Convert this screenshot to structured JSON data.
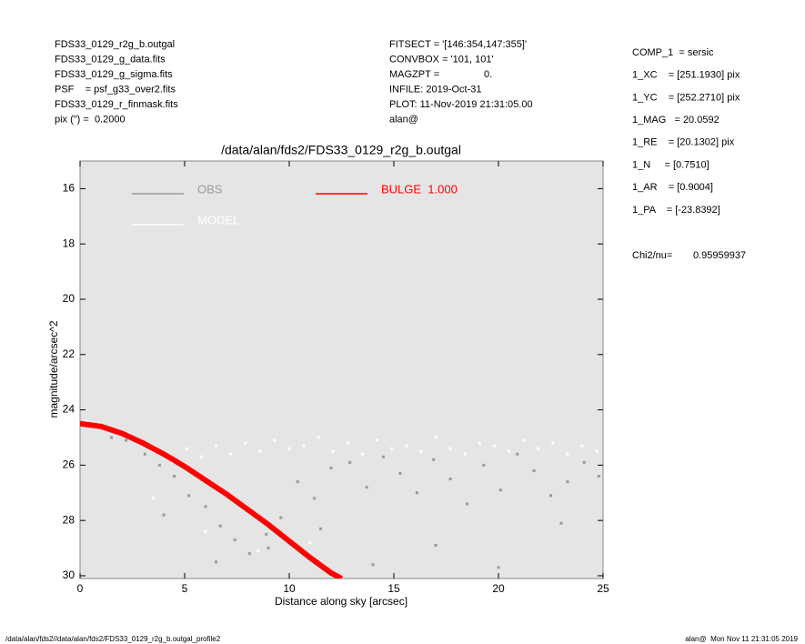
{
  "header": {
    "left": [
      "FDS33_0129_r2g_b.outgal",
      "FDS33_0129_g_data.fits",
      "FDS33_0129_g_sigma.fits",
      "PSF    = psf_g33_over2.fits",
      "FDS33_0129_r_finmask.fits",
      "pix (\") =  0.2000"
    ],
    "middle": [
      "FITSECT = '[146:354,147:355]'",
      "CONVBOX = '101, 101'",
      "MAGZPT =                0.",
      "INFILE: 2019-Oct-31",
      "PLOT: 11-Nov-2019 21:31:05.00",
      "alan@"
    ],
    "right": [
      "COMP_1  = sersic",
      "1_XC    = [251.1930] pix",
      "1_YC    = [252.2710] pix",
      "1_MAG   = 20.0592",
      "1_RE    = [20.1302] pix",
      "1_N     = [0.7510]",
      "1_AR    = [0.9004]",
      "1_PA    = [-23.8392]"
    ],
    "chi2_label": "Chi2/nu=",
    "chi2_value": "0.95959937"
  },
  "chart_data": {
    "type": "scatter",
    "title": "/data/alan/fds2/FDS33_0129_r2g_b.outgal",
    "xlabel": "Distance along sky [arcsec]",
    "ylabel": "magnitude/arcsec^2",
    "xlim": [
      0,
      25
    ],
    "xticks": [
      0,
      5,
      10,
      15,
      20,
      25
    ],
    "ylim": [
      15,
      30.1
    ],
    "y_inverted": true,
    "yticks": [
      16,
      18,
      20,
      22,
      24,
      26,
      28,
      30
    ],
    "background": "#e5e5e5",
    "series": [
      {
        "name": "OBS",
        "color": "#999999",
        "mode": "points",
        "x": [
          0.8,
          1.5,
          2.2,
          3.1,
          3.8,
          4.5,
          5.2,
          6.0,
          6.7,
          7.4,
          8.1,
          8.9,
          9.6,
          10.4,
          11.2,
          12.0,
          12.9,
          13.7,
          14.5,
          15.3,
          16.1,
          16.9,
          17.7,
          18.5,
          19.3,
          20.1,
          20.9,
          21.7,
          22.5,
          23.3,
          24.1,
          24.8,
          4.0,
          6.5,
          9.0,
          11.5,
          14.0,
          17.0,
          20.0,
          23.0
        ],
        "values": [
          24.6,
          25.0,
          25.1,
          25.6,
          26.0,
          26.4,
          27.1,
          27.5,
          28.2,
          28.7,
          29.2,
          28.5,
          27.9,
          26.6,
          27.2,
          26.1,
          25.9,
          26.8,
          25.7,
          26.3,
          27.0,
          25.8,
          26.5,
          27.4,
          26.0,
          26.9,
          25.6,
          26.2,
          27.1,
          26.6,
          25.9,
          26.4,
          27.8,
          29.5,
          29.0,
          28.3,
          29.6,
          28.9,
          29.7,
          28.1
        ]
      },
      {
        "name": "MODEL",
        "color": "#ffffff",
        "mode": "points",
        "x": [
          0.3,
          0.9,
          1.6,
          2.3,
          3.0,
          3.7,
          4.4,
          5.1,
          5.8,
          6.5,
          7.2,
          7.9,
          8.6,
          9.3,
          10.0,
          10.7,
          11.4,
          12.1,
          12.8,
          13.5,
          14.2,
          14.9,
          15.6,
          16.3,
          17.0,
          17.7,
          18.4,
          19.1,
          19.8,
          20.5,
          21.2,
          21.9,
          22.6,
          23.3,
          24.0,
          24.7,
          3.5,
          6.0,
          8.5,
          11.0
        ],
        "values": [
          24.4,
          24.5,
          24.7,
          24.9,
          25.2,
          25.5,
          25.9,
          25.4,
          25.7,
          25.3,
          25.6,
          25.2,
          25.5,
          25.1,
          25.4,
          25.3,
          25.0,
          25.5,
          25.2,
          25.6,
          25.1,
          25.4,
          25.3,
          25.5,
          25.0,
          25.4,
          25.6,
          25.2,
          25.3,
          25.5,
          25.1,
          25.4,
          25.2,
          25.6,
          25.3,
          25.5,
          27.2,
          28.4,
          29.1,
          28.8
        ]
      },
      {
        "name": "BULGE  1.000",
        "color": "#ff0000",
        "mode": "line",
        "x": [
          0,
          1,
          2,
          3,
          4,
          5,
          6,
          7,
          8,
          9,
          10,
          11,
          12,
          12.5
        ],
        "values": [
          24.5,
          24.6,
          24.85,
          25.2,
          25.6,
          26.05,
          26.55,
          27.05,
          27.6,
          28.15,
          28.75,
          29.35,
          29.9,
          30.1
        ]
      }
    ]
  },
  "footer": {
    "left": "/data/alan/fds2//data/alan/fds2/FDS33_0129_r2g_b.outgal_profile2",
    "right": "alan@  Mon Nov 11 21:31:05 2019"
  }
}
